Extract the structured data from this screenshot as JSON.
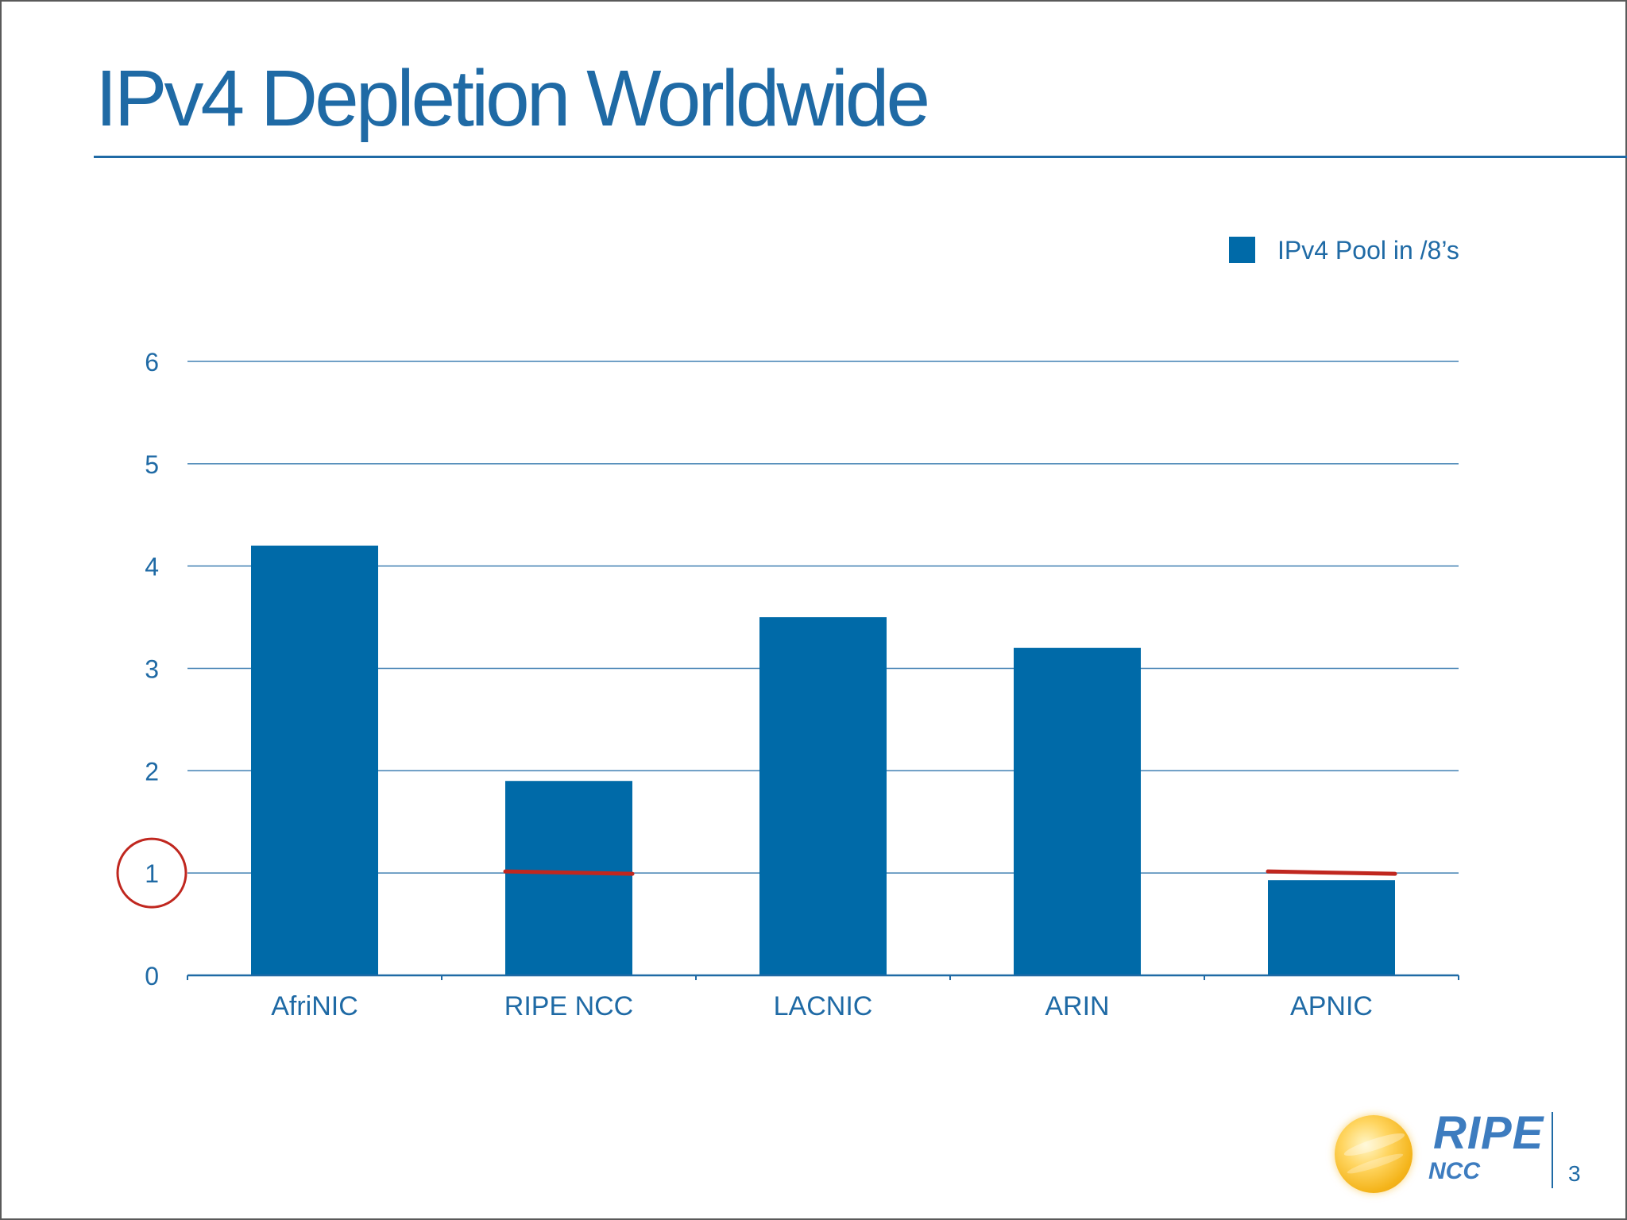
{
  "slide": {
    "title": "IPv4 Depletion Worldwide",
    "page_number": "3"
  },
  "logo": {
    "name": "RIPE",
    "sub": "NCC"
  },
  "colors": {
    "bar": "#006aa8",
    "text": "#1f6aa5",
    "gridline": "#1f6aa5",
    "marker": "#c0271f"
  },
  "chart_data": {
    "type": "bar",
    "title": "",
    "xlabel": "",
    "ylabel": "",
    "categories": [
      "AfriNIC",
      "RIPE NCC",
      "LACNIC",
      "ARIN",
      "APNIC"
    ],
    "series": [
      {
        "name": "IPv4 Pool in /8’s",
        "values": [
          4.2,
          1.9,
          3.5,
          3.2,
          0.93
        ]
      }
    ],
    "ylim": [
      0,
      6
    ],
    "yticks": [
      "0",
      "1",
      "2",
      "3",
      "4",
      "5",
      "6"
    ],
    "grid": true,
    "legend_position": "top-right",
    "annotations": [
      {
        "type": "threshold-line",
        "category": "RIPE NCC",
        "value": 1
      },
      {
        "type": "threshold-line",
        "category": "APNIC",
        "value": 1
      },
      {
        "type": "circled-tick",
        "value": 1
      }
    ]
  }
}
